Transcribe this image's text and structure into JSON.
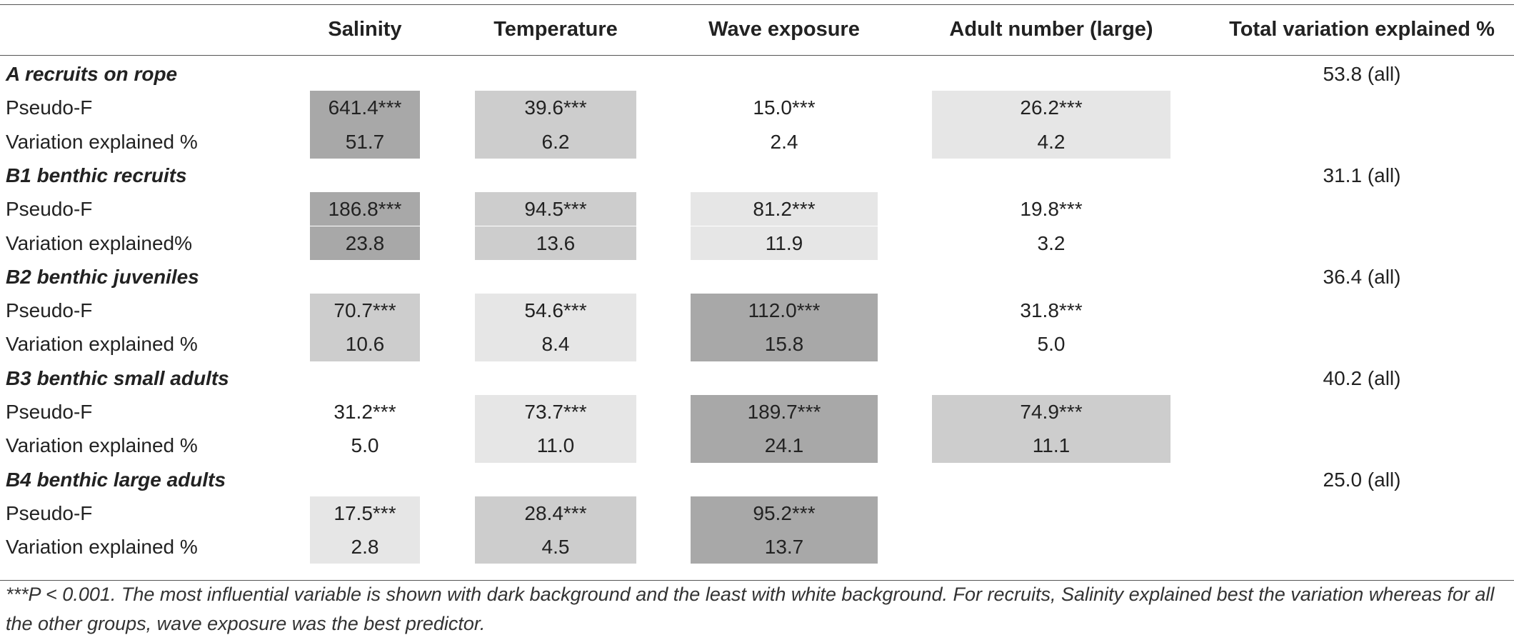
{
  "header": {
    "col_label": "",
    "salinity": "Salinity",
    "temperature": "Temperature",
    "wave": "Wave exposure",
    "adult": "Adult number (large)",
    "total": "Total variation explained %"
  },
  "groups": [
    {
      "label": "A recruits on rope",
      "total": "53.8 (all)",
      "pseudo_label": "Pseudo-F",
      "var_label": "Variation explained %",
      "pseudo": [
        "641.4***",
        "39.6***",
        "15.0***",
        "26.2***"
      ],
      "var": [
        "51.7",
        "6.2",
        "2.4",
        "4.2"
      ],
      "shade": [
        "dark",
        "mid",
        "none",
        "light"
      ]
    },
    {
      "label": "B1 benthic recruits",
      "total": "31.1 (all)",
      "pseudo_label": "Pseudo-F",
      "var_label": "Variation explained%",
      "pseudo": [
        "186.8***",
        "94.5***",
        "81.2***",
        "19.8***"
      ],
      "var": [
        "23.8",
        "13.6",
        "11.9",
        "3.2"
      ],
      "shade": [
        "dark",
        "mid",
        "light",
        "none"
      ]
    },
    {
      "label": "B2 benthic juveniles",
      "total": "36.4 (all)",
      "pseudo_label": "Pseudo-F",
      "var_label": "Variation explained %",
      "pseudo": [
        "70.7***",
        "54.6***",
        "112.0***",
        "31.8***"
      ],
      "var": [
        "10.6",
        "8.4",
        "15.8",
        "5.0"
      ],
      "shade": [
        "mid",
        "light",
        "dark",
        "none"
      ]
    },
    {
      "label": "B3 benthic small adults",
      "total": "40.2 (all)",
      "pseudo_label": "Pseudo-F",
      "var_label": "Variation explained %",
      "pseudo": [
        "31.2***",
        "73.7***",
        "189.7***",
        "74.9***"
      ],
      "var": [
        "5.0",
        "11.0",
        "24.1",
        "11.1"
      ],
      "shade": [
        "none",
        "light",
        "dark",
        "mid"
      ]
    },
    {
      "label": "B4 benthic large adults",
      "total": "25.0 (all)",
      "pseudo_label": "Pseudo-F",
      "var_label": "Variation explained %",
      "pseudo": [
        "17.5***",
        "28.4***",
        "95.2***",
        ""
      ],
      "var": [
        "2.8",
        "4.5",
        "13.7",
        ""
      ],
      "shade": [
        "light",
        "mid",
        "dark",
        "none"
      ]
    }
  ],
  "footnote": "***P < 0.001. The most influential variable is shown with dark background and the least with white background. For recruits, Salinity explained best the variation whereas for all the other groups, wave exposure was the best predictor.",
  "colors": {
    "dark": "#a8a8a8",
    "mid": "#cdcdcd",
    "light": "#e6e6e6",
    "rule": "#555555"
  }
}
